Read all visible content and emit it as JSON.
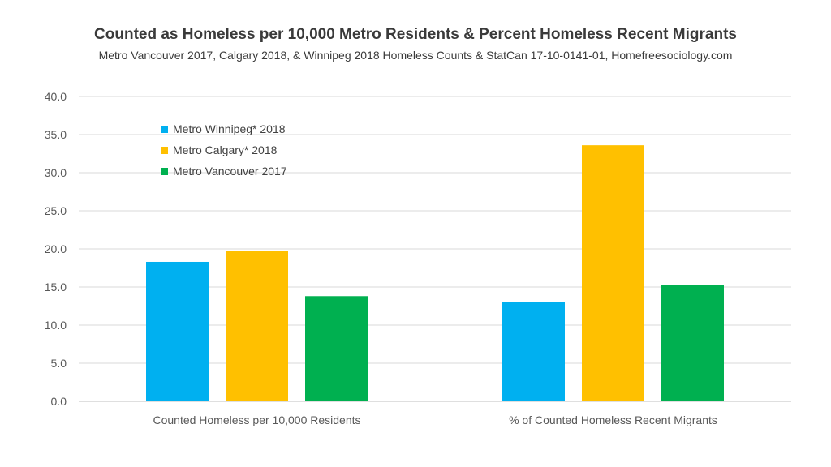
{
  "chart_data": {
    "type": "bar",
    "title": "Counted as Homeless per 10,000 Metro Residents & Percent Homeless Recent Migrants",
    "subtitle": "Metro Vancouver 2017, Calgary 2018, & Winnipeg 2018 Homeless Counts & StatCan 17-10-0141-01,  Homefreesociology.com",
    "categories": [
      "Counted Homeless per 10,000 Residents",
      "% of Counted Homeless Recent Migrants"
    ],
    "series": [
      {
        "name": "Metro Winnipeg* 2018",
        "color": "#00b0f0",
        "values": [
          18.3,
          13.0
        ]
      },
      {
        "name": "Metro Calgary* 2018",
        "color": "#ffc000",
        "values": [
          19.7,
          33.6
        ]
      },
      {
        "name": "Metro Vancouver 2017",
        "color": "#00b050",
        "values": [
          13.8,
          15.3
        ]
      }
    ],
    "ylim": [
      0,
      40
    ],
    "yticks": [
      0,
      5,
      10,
      15,
      20,
      25,
      30,
      35,
      40
    ],
    "ytick_labels": [
      "0.0",
      "5.0",
      "10.0",
      "15.0",
      "20.0",
      "25.0",
      "30.0",
      "35.0",
      "40.0"
    ],
    "xlabel": "",
    "ylabel": "",
    "grid": true,
    "legend_position": "top-left"
  }
}
